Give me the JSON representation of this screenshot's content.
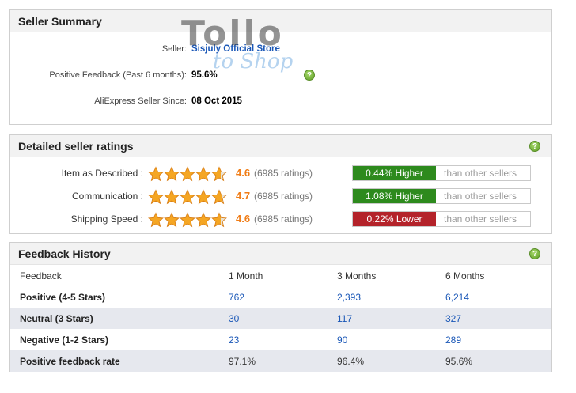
{
  "seller_summary": {
    "title": "Seller Summary",
    "seller_label": "Seller:",
    "seller_name": "Sisjuly Official Store",
    "positive_feedback_label": "Positive Feedback (Past 6 months):",
    "positive_feedback_value": "95.6%",
    "seller_since_label": "AliExpress Seller Since:",
    "seller_since_value": "08 Oct 2015",
    "watermark_main": "Tollo",
    "watermark_sub": "to Shop"
  },
  "detailed_ratings": {
    "title": "Detailed seller ratings",
    "help_icon": "question-icon",
    "rows": [
      {
        "label": "Item as Described :",
        "stars": 4.6,
        "score": "4.6",
        "count": "(6985 ratings)",
        "compare": "0.44% Higher",
        "direction": "higher",
        "suffix": "than other sellers"
      },
      {
        "label": "Communication :",
        "stars": 4.7,
        "score": "4.7",
        "count": "(6985 ratings)",
        "compare": "1.08% Higher",
        "direction": "higher",
        "suffix": "than other sellers"
      },
      {
        "label": "Shipping Speed :",
        "stars": 4.6,
        "score": "4.6",
        "count": "(6985 ratings)",
        "compare": "0.22% Lower",
        "direction": "lower",
        "suffix": "than other sellers"
      }
    ]
  },
  "feedback_history": {
    "title": "Feedback History",
    "columns": [
      "Feedback",
      "1 Month",
      "3 Months",
      "6 Months"
    ],
    "rows": [
      {
        "label": "Positive (4-5 Stars)",
        "values": [
          "762",
          "2,393",
          "6,214"
        ]
      },
      {
        "label": "Neutral (3 Stars)",
        "values": [
          "30",
          "117",
          "327"
        ]
      },
      {
        "label": "Negative (1-2 Stars)",
        "values": [
          "23",
          "90",
          "289"
        ]
      },
      {
        "label": "Positive feedback rate",
        "values": [
          "97.1%",
          "96.4%",
          "95.6%"
        ]
      }
    ]
  },
  "colors": {
    "star": "#f5a623",
    "score": "#f07d17",
    "higher": "#2d8a1d",
    "lower": "#b4232a",
    "link": "#1a57b7"
  }
}
